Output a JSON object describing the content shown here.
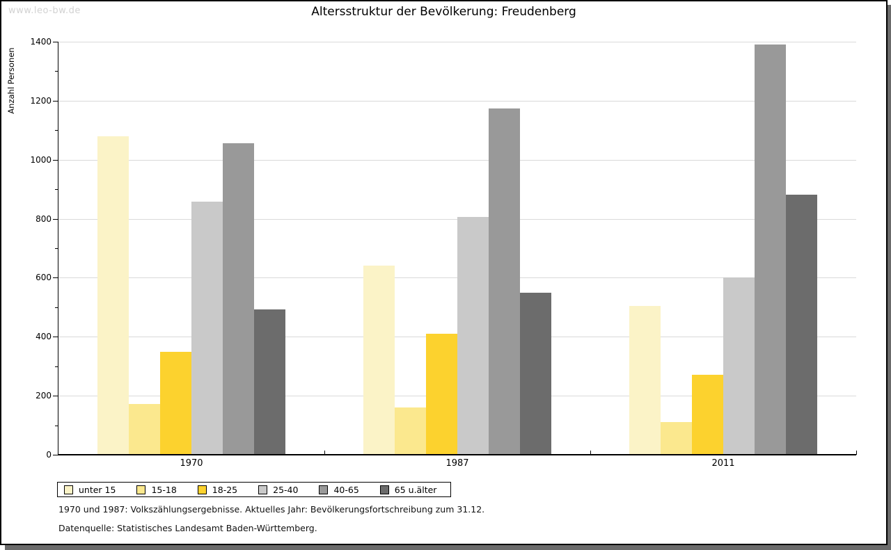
{
  "page": {
    "watermark": "www.leo-bw.de",
    "title": "Altersstruktur der Bevölkerung: Freudenberg",
    "footnotes": [
      "1970 und 1987: Volkszählungsergebnisse. Aktuelles Jahr: Bevölkerungsfortschreibung zum 31.12.",
      "Datenquelle: Statistisches Landesamt Baden-Württemberg."
    ]
  },
  "colors": {
    "shadow": "#6b6b6b",
    "grid": "#d9d9d9",
    "axis": "#000000",
    "watermark": "#d2d2d2"
  },
  "chart_data": {
    "type": "bar",
    "title": "Altersstruktur der Bevölkerung: Freudenberg",
    "xlabel": "",
    "ylabel": "Anzahl Personen",
    "categories": [
      "1970",
      "1987",
      "2011"
    ],
    "series": [
      {
        "name": "unter 15",
        "color": "#fbf3c7",
        "values": [
          1080,
          640,
          505
        ]
      },
      {
        "name": "15-18",
        "color": "#fbe88e",
        "values": [
          172,
          160,
          110
        ]
      },
      {
        "name": "18-25",
        "color": "#fcd22e",
        "values": [
          348,
          411,
          270
        ]
      },
      {
        "name": "25-40",
        "color": "#c9c9c9",
        "values": [
          857,
          806,
          600
        ]
      },
      {
        "name": "40-65",
        "color": "#999999",
        "values": [
          1055,
          1174,
          1390
        ]
      },
      {
        "name": "65 u.älter",
        "color": "#6c6c6c",
        "values": [
          492,
          550,
          882
        ]
      }
    ],
    "ylim": [
      0,
      1400
    ],
    "ytick_step": 200,
    "yminor_step": 100,
    "grid": true,
    "legend_position": "bottom"
  }
}
